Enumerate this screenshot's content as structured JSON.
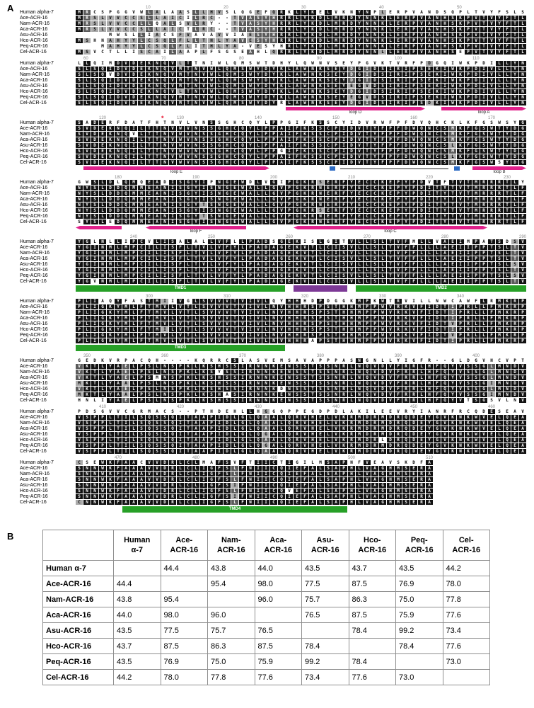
{
  "panelA": {
    "label": "A"
  },
  "panelB": {
    "label": "B"
  },
  "alignment": {
    "block_width": 58,
    "ruler_step": 10,
    "rows": [
      {
        "label": "Human alpha-7",
        "seq": "MRCSPGGVWLALAASLLHVSLQGEFQRKLYKELVKNYNPLERPVANDSQPLTVYFSLSLLQIMDVDEKNQVLTTNIWLQMSWTDHYLQWNVSEYPGVKTVRFPDGQIWKPDILLYNSADERFDATFHTNVLVNSSGHCQYLPPGIFKSSCYIDVRWFPFDVQHCKLKFGSWSYGGWSLDLQMQEADISGYIPNGEWDLVGIPGKRSERFYECCKEPYPDVTFTVTMRRRTLYYGLNLLIPCVLISALALLVFLLPADSGEKISLGITVLLSLTVFMLLVAEIMPATSDSVPLIAQYFASTMIIVGLSVVVTVIVLQYHHHDPDGGKMPKWTRVILLNWCAWFLRMKRPGEDKVRPACQH----KQRRCSLASVEMSAVAPPPASNGNLLYIGFR--GLDGVHCVPTPDSGVVCGRMACS--PTHDEHLLHGGQPPEGDPDLAKILEEVRYIANRFRCQDESEAVCSEWKFAACVVDRLCLMAFSVFTIICTIGILMSAPNFVEAVSKDFA"
      },
      {
        "label": "Ace-ACR-16",
        "seq": "MRSLVVCCSLLAICILRC--TVASYHRRLYKDLMRDYNNKLERPVANHSKPVTVYFTLSLSQIDVDEKNQVMTNVWLQMSWYDYKLAWNKSEYDGIDSIRIPSEKIWKPDIVLLYNSVDEKNQILTTNVWVNSSGHCQYLPPAIFKSSCPIDVTYFPFDWQNCSMKFGSWTYDGNYSLDDQMMEANISGYISNGEWALLGVPGKRNERFYECCKEPYPDITYTVTMRRRTLFYGINMLMPCILISFLTVLVFYLPADAGEKVTLCISVLLSLTVFFLLLAEIIPPTSLTVPLIGKYMLFTMVLVTLSVVVTVIVLNVHHRSPSTHHMPPWVRKVFIDTIPRLLFMKRPVKTLYAELPSLNSPKLKSHSSIRNNKENSSTSSNRLNQVDVFRRLHFQYVSSGLMNDVVSPPLTILSQSSQITAAPIDLGLQAALQRVHELVKRMDRMDRQDEYGVKNKWVELQEASNNWKFAAAVVDRLCLIGFSLFNIICQIEFALSAPHLVAGHMSERA"
      },
      {
        "label": "Nam-ACR-16",
        "seq": "MRSLVVCCLLQALSVLRY--TVASYHRRLYKDLMRDYNNKLERPVANHSKPVTVYFTLSLSQVDVDEKNQVMTNVWLQMSWYDYKLAWNKSEYDGIDSIRIPSEKIWKPDIVLLYNSVDEKNQVLTTNVWVNSSGHCQYLPPAIFKSSCPIDVTYFPFDWQNCSMKFGSWTYDGNYSLDDQMMEANISGYISNGEWALLGVPGKRNERFYECCKEPYPDITYTVTMRRRTLFYGINMLMPCILISFLTVLVFYLPADAGEKVTLCISVLLSLTVFFLLLAEIIPPTSLTVPLIGKYMLFTMVLVTLSVVVTVIVLNVHHRSPSTHHMPPWVRKVFIDTIPRLLFMKRPVKTLYAELPSLNSPKLKSYSSIRNNKENSSTSSNRLNQVDVFRRLHFQYVSSGLMNDVVSPPLTILSQSSQITAAPIDLGLQAALQRVHELVKRMDRMDRQDEYGVKNKWVELQEASNNWKFAAAVVDRLCLIGFSLFNIICQIEFALSAPHLVAGHMSERA"
      },
      {
        "label": "Aca-ACR-16",
        "seq": "MRSLVVCCSLLAICTLRC--TVASYHRRLYKDLMRDYNNKLERPVANHSKPVTVYFTLSLSQIDVDEKNQVMTNVWLQMSWYDYKLAWNKSEYDGIDSIRIPSEKIWKPDIVLLYNSVDEKNQILTTNVWVNSSGHCQYLPPAIFKSSCPIDVTYFPFDWQNCSMKFGSWTYDGNYSLDDQMMEANISGYISNGEWALLGVPGKRNERFYECCKEPYPDITYTVTMRRRTLFYGINMLMPCILISFLTVLVFYLPADAGEKVTLCISVLLSLTVFFLLLAEIIPPTSLTVPLIGKYMLFTMVLVTLSVVVTVIVLNVHHRSPSTHHMPPWVRKVFIDTIPRLLFMKRPVKTLYAELPSMNSPKLKSHSSIRNNKENSSTSSNRLNQVDVFRRLHFQYVSSGLMNDVVSPPLTILSQSSQITAAPIDLGLQAALQRVHELVKRMDRMDRQDEYGVKNKWVELQEASNNWKFAAAVVDRLCLIGFSLFNIICQIEFALSAPHLVAGHMSERA"
      },
      {
        "label": "Asu-ACR-16",
        "seq": "    MWSLLIACSFVAVAVVIAESYHRRLYKDLMRDYNNKLERPVANHSKPVTVYFTLSLSQIDVDEKNQVMTNVWLQMSWYDYKLAWNKSEYEGVDSIRIPSEKIWKPDIVLLYNSVDEKNQILTTNVWVNSSGHCQYLPPAIFKSSCPIDVTYFPFDWQNCSLKFGSWTYDGNYSLDDQMMEANISGYTSNGEWALLGVPGKRNERFYECCKEPYPDITYTVTMRRRTLFYGINMLMPCILISFLTVLVFYLPADAGEKVTLCISVLLSLTVFFLLLAEIIPPTSLSVPLIGKYMLFTMVLVTLSVVVTVIVLNVHHRSPSTHHMPPWVRKVFIDTVPRLLFMKRPMKTLYAALPSLNSPKLKSHSSIRNNKENSSTSSNRLNQVDVFRRLHFQYVSSGIMNDVVSPPLTILSQSSQITAAPIDLGLQGALQRVHELVKRMDRMDRQDEYGVKNKWVELQEASNNWKFAAAVVDRLCLIGFSIFNIICQIEFALSAPHLVAGHMSERA"
      },
      {
        "label": "Hco-ACR-16",
        "seq": "MSHNAHYYLCSQLFLLTHLYAVESYHRRLYKDLMRDYNNKLERPVANHSKPVTVYFTLSLSQIDVDEKNQVLTNVWLQMSWYDYKLAWNKSEYDGIDSIRIPSEKIWKPDIVLLYNSVDEKNQILTTNVWVNSSGHCQYLPPGIFKSSCPIDVTYFPFDWQNCSMKFGSWTYDGNYSLDDQMMEANISGYISNGEWALLGVPGKRSERFYECCKEPYPDITYTVTMRRRTLFYGINMLMPCILISFLTVLVFYLPADAGEKVTLCISVLLSLTVFFLLLAEIIPPTSLTVPLIGKYMLFTMILVTLSVVVTVIVLNVHHRSPSTHHMPPWVRKVFIDTIPRLLFMKRPVKTLYAELPSLNSPKLKSHSSIRNNKDNSSTSSNRLNQVDVFRRLHFQYVSSGLMNDVVSPPLTILSQSSQITAAPIDLGLQAALQRVHELVKRMDRLDRQDEYGVKNKWVELQEASNNWKFAAAVVDRLCLIGFSLFNIICQVEFALSAPHLVAGHMSERA"
      },
      {
        "label": "Peq-ACR-16",
        "seq": "   MAHYYLCSQLFLITHLYA-VESYHRLYKDLMRDYNNKLERPVANHSKPVTVYFTLSLSQIDVDEKNQVMTNVWLQMSWYDYKLAWNKSEYEGVDSIRIPSEKIWKPDIVLLYNSVDEKNQILTTNVWVNSSGHCQYLPPAIFKSSCPIDVTYFPFDWQNCSLKFGSWTYDGNYSLDDQMMEANISGYTSNGEWALLGVPGKRNERFYECCKEPYPDITYTVTMRRRTLFYGINMLMPCILISFLTVLVFYLPADAGEKVTLCISVLLSLTVFFLLLAEIIPPTSLSVPLIGKYMLFTMVLVTLSVVVTVIVLNVHHRSPSTHHMPPWVRKVFIDTVPRLLFMKRPMKTLYAALPSLNSPKLKSHASIRNNKENSSTSSNRLNQVDVFRRLHFQYVSSGIMNDVVSPPLTILSQSSQITAAPIDLGLQGALQRVHELVKRMDRMDRQDEYGVKNKWVELQEASNNWKFAAAVVDRLCLIGFSIFNIICQIEFALSAPHLVAGHMSERA"
      },
      {
        "label": "Cel-ACR-16",
        "seq": "MSVCTLLISCAILAAPLFSGSEAHLQRRLYKDLMRDYNNLLERPVANHSEPVTVYFTLSLSQIDVDEKNQVMTNVWLQMSWYDYRLAWNKSEYDGIDSIRIPSDKIWKPDIVLLYNSVDEKNQILTTNVWVNSSGHCQYLPPAIFKSSCPIDVTYFPFDWQNCSMKFGSWSYDGSYSLEDQMMEANISGYISNGEWALLGVPGKRNERFYECCKEPYPDITYTVTMRRRTLFYGVNMLMPCILISFLTVLVFYLPADAGEKVTLCISVLLSLTVFFLLLAEIIPPTSLTVPLIGKYMLFTMVLVTLSVVVTVIVLNVHHRAPSTHHMPPWVRKVFIDTIPRLLFMKRPHNLIYAELPSLNSPKLKSHSSIRNNKENSSTSSNRLNQVDVFRRLHFQYVTSGSVLNVVSPPLTILSQSSQITAAPIDLGLQAALQRVHELVKRMDRMDRQDEYGVKNKWVELQEACNNWKFAAAVVDRLCLIGFSLFNIICQIEFALSAPHLVAGHMSERA"
      }
    ],
    "annotations": [
      {
        "type": "arrow-right",
        "color": "#e0218a",
        "label": "loop D",
        "start": 86,
        "end": 103
      },
      {
        "type": "arrow-right",
        "color": "#e0218a",
        "label": "loop A",
        "start": 106,
        "end": 116
      },
      {
        "type": "asterisk",
        "color": "#e8112d",
        "label": "*",
        "start": 128,
        "end": 128
      },
      {
        "type": "arrow-right",
        "color": "#e0218a",
        "label": "loop E",
        "start": 118,
        "end": 141
      },
      {
        "type": "square",
        "color": "#2d6bc4",
        "label": "",
        "start": 149,
        "end": 150
      },
      {
        "type": "line",
        "color": "#222222",
        "label": "",
        "start": 151,
        "end": 164
      },
      {
        "type": "square",
        "color": "#2d6bc4",
        "label": "",
        "start": 165,
        "end": 166
      },
      {
        "type": "arrow-right",
        "color": "#e0218a",
        "label": "loop B",
        "start": 168,
        "end": 174
      },
      {
        "type": "arrow-left",
        "color": "#e0218a",
        "label": "",
        "start": 175,
        "end": 180
      },
      {
        "type": "arrow-left",
        "color": "#e0218a",
        "label": "loop F",
        "start": 184,
        "end": 196
      },
      {
        "type": "arrow-double",
        "color": "#e0218a",
        "label": "loop C",
        "start": 203,
        "end": 227
      },
      {
        "type": "bar",
        "color": "#27a027",
        "label": "TMD1",
        "start": 233,
        "end": 259
      },
      {
        "type": "bar",
        "color": "#7d3996",
        "label": "",
        "start": 261,
        "end": 267
      },
      {
        "type": "bar",
        "color": "#27a027",
        "label": "TMD2",
        "start": 269,
        "end": 290
      },
      {
        "type": "bar",
        "color": "#27a027",
        "label": "TMD3",
        "start": 291,
        "end": 317
      },
      {
        "type": "bar",
        "color": "#27a027",
        "label": "TMD4",
        "start": 471,
        "end": 499
      }
    ]
  },
  "identity_table": {
    "columns": [
      {
        "line1": "Human",
        "line2": "α-7"
      },
      {
        "line1": "Ace-",
        "line2": "ACR-16"
      },
      {
        "line1": "Nam-",
        "line2": "ACR-16"
      },
      {
        "line1": "Aca-",
        "line2": "ACR-16"
      },
      {
        "line1": "Asu-",
        "line2": "ACR-16"
      },
      {
        "line1": "Hco-",
        "line2": "ACR-16"
      },
      {
        "line1": "Peq-",
        "line2": "ACR-16"
      },
      {
        "line1": "Cel-",
        "line2": "ACR-16"
      }
    ],
    "rows": [
      {
        "label": "Human α-7",
        "values": [
          "",
          "44.4",
          "43.8",
          "44.0",
          "43.5",
          "43.7",
          "43.5",
          "44.2"
        ]
      },
      {
        "label": "Ace-ACR-16",
        "values": [
          "44.4",
          "",
          "95.4",
          "98.0",
          "77.5",
          "87.5",
          "76.9",
          "78.0"
        ]
      },
      {
        "label": "Nam-ACR-16",
        "values": [
          "43.8",
          "95.4",
          "",
          "96.0",
          "75.7",
          "86.3",
          "75.0",
          "77.8"
        ]
      },
      {
        "label": "Aca-ACR-16",
        "values": [
          "44.0",
          "98.0",
          "96.0",
          "",
          "76.5",
          "87.5",
          "75.9",
          "77.6"
        ]
      },
      {
        "label": "Asu-ACR-16",
        "values": [
          "43.5",
          "77.5",
          "75.7",
          "76.5",
          "",
          "78.4",
          "99.2",
          "73.4"
        ]
      },
      {
        "label": "Hco-ACR-16",
        "values": [
          "43.7",
          "87.5",
          "86.3",
          "87.5",
          "78.4",
          "",
          "78.4",
          "77.6"
        ]
      },
      {
        "label": "Peq-ACR-16",
        "values": [
          "43.5",
          "76.9",
          "75.0",
          "75.9",
          "99.2",
          "78.4",
          "",
          "73.0"
        ]
      },
      {
        "label": "Cel-ACR-16",
        "values": [
          "44.2",
          "78.0",
          "77.8",
          "77.6",
          "73.4",
          "77.6",
          "73.0",
          ""
        ]
      }
    ]
  }
}
